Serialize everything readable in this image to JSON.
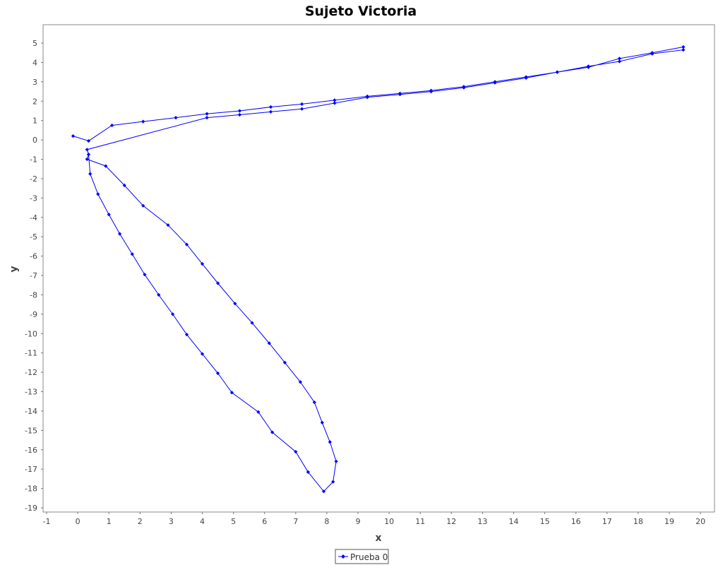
{
  "chart_data": {
    "type": "line",
    "title": "Sujeto Victoria",
    "xlabel": "x",
    "ylabel": "y",
    "xlim": [
      -1,
      20
    ],
    "ylim": [
      -19,
      5
    ],
    "xticks": [
      "-1",
      "0",
      "1",
      "2",
      "3",
      "4",
      "5",
      "6",
      "7",
      "8",
      "9",
      "10",
      "11",
      "12",
      "13",
      "14",
      "15",
      "16",
      "17",
      "18",
      "19",
      "20"
    ],
    "yticks": [
      "5",
      "4",
      "3",
      "2",
      "1",
      "0",
      "-1",
      "-2",
      "-3",
      "-4",
      "-5",
      "-6",
      "-7",
      "-8",
      "-9",
      "-10",
      "-11",
      "-12",
      "-13",
      "-14",
      "-15",
      "-16",
      "-17",
      "-18",
      "-19"
    ],
    "grid": false,
    "legend": "bottom-center",
    "series": [
      {
        "name": "Prueba 0",
        "color": "#0000ff",
        "marker": "diamond",
        "points": [
          [
            -0.15,
            0.2
          ],
          [
            0.35,
            -0.05
          ],
          [
            1.1,
            0.75
          ],
          [
            2.1,
            0.95
          ],
          [
            3.15,
            1.15
          ],
          [
            4.15,
            1.35
          ],
          [
            5.2,
            1.5
          ],
          [
            6.2,
            1.7
          ],
          [
            7.2,
            1.85
          ],
          [
            8.25,
            2.05
          ],
          [
            9.3,
            2.25
          ],
          [
            10.35,
            2.4
          ],
          [
            11.35,
            2.55
          ],
          [
            12.4,
            2.75
          ],
          [
            13.4,
            3.0
          ],
          [
            14.4,
            3.25
          ],
          [
            15.4,
            3.5
          ],
          [
            16.4,
            3.75
          ],
          [
            17.4,
            4.2
          ],
          [
            18.45,
            4.5
          ],
          [
            19.45,
            4.8
          ],
          [
            19.45,
            4.65
          ],
          [
            18.45,
            4.45
          ],
          [
            17.4,
            4.05
          ],
          [
            16.4,
            3.8
          ],
          [
            15.4,
            3.5
          ],
          [
            14.4,
            3.2
          ],
          [
            13.4,
            2.95
          ],
          [
            12.4,
            2.7
          ],
          [
            11.35,
            2.5
          ],
          [
            10.35,
            2.35
          ],
          [
            9.3,
            2.2
          ],
          [
            8.25,
            1.9
          ],
          [
            7.2,
            1.6
          ],
          [
            6.2,
            1.45
          ],
          [
            5.2,
            1.3
          ],
          [
            4.15,
            1.15
          ],
          [
            0.3,
            -0.5
          ],
          [
            0.35,
            -0.75
          ],
          [
            0.3,
            -1.0
          ],
          [
            0.9,
            -1.35
          ],
          [
            1.5,
            -2.35
          ],
          [
            2.1,
            -3.4
          ],
          [
            2.9,
            -4.4
          ],
          [
            3.5,
            -5.4
          ],
          [
            4.0,
            -6.4
          ],
          [
            4.5,
            -7.4
          ],
          [
            5.05,
            -8.45
          ],
          [
            5.6,
            -9.45
          ],
          [
            6.15,
            -10.5
          ],
          [
            6.65,
            -11.5
          ],
          [
            7.15,
            -12.5
          ],
          [
            7.6,
            -13.55
          ],
          [
            7.85,
            -14.6
          ],
          [
            8.1,
            -15.6
          ],
          [
            8.3,
            -16.6
          ],
          [
            8.2,
            -17.65
          ],
          [
            7.9,
            -18.15
          ],
          [
            7.4,
            -17.15
          ],
          [
            7.0,
            -16.1
          ],
          [
            6.25,
            -15.1
          ],
          [
            5.8,
            -14.05
          ],
          [
            4.95,
            -13.05
          ],
          [
            4.5,
            -12.05
          ],
          [
            4.0,
            -11.05
          ],
          [
            3.5,
            -10.05
          ],
          [
            3.05,
            -9.0
          ],
          [
            2.6,
            -8.0
          ],
          [
            2.15,
            -6.95
          ],
          [
            1.75,
            -5.9
          ],
          [
            1.35,
            -4.85
          ],
          [
            1.0,
            -3.85
          ],
          [
            0.65,
            -2.8
          ],
          [
            0.4,
            -1.75
          ],
          [
            0.35,
            -0.75
          ]
        ]
      }
    ]
  }
}
